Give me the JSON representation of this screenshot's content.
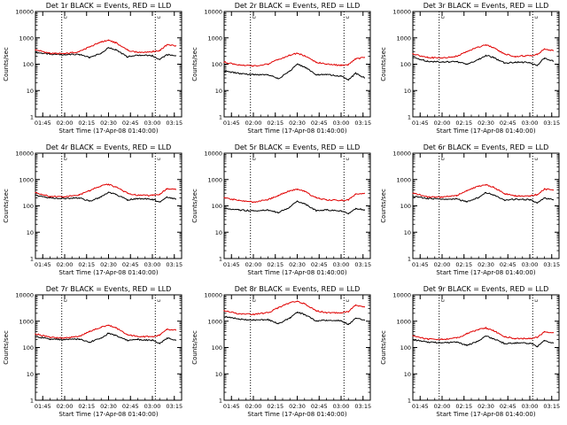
{
  "legend_marker": "␣",
  "colors": {
    "events": "#000000",
    "lld": "#e00000",
    "axis": "#000000",
    "background": "#ffffff"
  },
  "chart_data": [
    {
      "type": "line",
      "title": "Det 1r BLACK = Events, RED = LLD",
      "xlabel": "Start Time (17-Apr-08 01:40:00)",
      "ylabel": "Counts/sec",
      "x_ticks": [
        "01:45",
        "02:00",
        "02:15",
        "02:30",
        "02:45",
        "03:00",
        "03:15"
      ],
      "y_ticks": [
        "1",
        "10",
        "100",
        "1000",
        "10000"
      ],
      "yscale": "log",
      "ylim": [
        1,
        10000
      ],
      "grid": false,
      "x": [
        "01:40",
        "01:50",
        "02:00",
        "02:10",
        "02:17",
        "02:25",
        "02:30",
        "02:35",
        "02:43",
        "02:50",
        "03:00",
        "03:05",
        "03:10",
        "03:16"
      ],
      "vlines": [
        "01:58",
        "03:02"
      ],
      "series": [
        {
          "name": "Events",
          "values": [
            280,
            240,
            230,
            235,
            180,
            260,
            420,
            350,
            190,
            220,
            210,
            150,
            230,
            210
          ]
        },
        {
          "name": "LLD",
          "values": [
            350,
            260,
            250,
            300,
            450,
            700,
            800,
            650,
            340,
            280,
            300,
            330,
            550,
            500
          ]
        }
      ]
    },
    {
      "type": "line",
      "title": "Det 2r BLACK = Events, RED = LLD",
      "xlabel": "Start Time (17-Apr-08 01:40:00)",
      "ylabel": "Counts/sec",
      "x_ticks": [
        "01:45",
        "02:00",
        "02:15",
        "02:30",
        "02:45",
        "03:00",
        "03:15"
      ],
      "y_ticks": [
        "1",
        "10",
        "100",
        "1000",
        "10000"
      ],
      "yscale": "log",
      "ylim": [
        1,
        10000
      ],
      "grid": false,
      "x": [
        "01:40",
        "01:50",
        "02:00",
        "02:10",
        "02:17",
        "02:25",
        "02:30",
        "02:35",
        "02:43",
        "02:50",
        "03:00",
        "03:05",
        "03:10",
        "03:16"
      ],
      "vlines": [
        "01:58",
        "03:02"
      ],
      "series": [
        {
          "name": "Events",
          "values": [
            55,
            45,
            40,
            40,
            28,
            55,
            100,
            80,
            40,
            40,
            35,
            25,
            45,
            30
          ]
        },
        {
          "name": "LLD",
          "values": [
            120,
            95,
            85,
            100,
            150,
            220,
            260,
            210,
            120,
            100,
            90,
            95,
            160,
            180
          ]
        }
      ]
    },
    {
      "type": "line",
      "title": "Det 3r BLACK = Events, RED = LLD",
      "xlabel": "Start Time (17-Apr-08 01:40:00)",
      "ylabel": "Counts/sec",
      "x_ticks": [
        "01:45",
        "02:00",
        "02:15",
        "02:30",
        "02:45",
        "03:00",
        "03:15"
      ],
      "y_ticks": [
        "1",
        "10",
        "100",
        "1000",
        "10000"
      ],
      "yscale": "log",
      "ylim": [
        1,
        10000
      ],
      "grid": false,
      "x": [
        "01:40",
        "01:50",
        "02:00",
        "02:10",
        "02:17",
        "02:25",
        "02:30",
        "02:35",
        "02:43",
        "02:50",
        "03:00",
        "03:05",
        "03:10",
        "03:16"
      ],
      "vlines": [
        "01:58",
        "03:02"
      ],
      "series": [
        {
          "name": "Events",
          "values": [
            180,
            130,
            120,
            125,
            100,
            150,
            220,
            180,
            110,
            120,
            115,
            90,
            170,
            130
          ]
        },
        {
          "name": "LLD",
          "values": [
            250,
            180,
            170,
            200,
            300,
            450,
            550,
            420,
            240,
            200,
            210,
            230,
            380,
            330
          ]
        }
      ]
    },
    {
      "type": "line",
      "title": "Det 4r BLACK = Events, RED = LLD",
      "xlabel": "Start Time (17-Apr-08 01:40:00)",
      "ylabel": "Counts/sec",
      "x_ticks": [
        "01:45",
        "02:00",
        "02:15",
        "02:30",
        "02:45",
        "03:00",
        "03:15"
      ],
      "y_ticks": [
        "1",
        "10",
        "100",
        "1000",
        "10000"
      ],
      "yscale": "log",
      "ylim": [
        1,
        10000
      ],
      "grid": false,
      "x": [
        "01:40",
        "01:50",
        "02:00",
        "02:10",
        "02:17",
        "02:25",
        "02:30",
        "02:35",
        "02:43",
        "02:50",
        "03:00",
        "03:05",
        "03:10",
        "03:16"
      ],
      "vlines": [
        "01:58",
        "03:02"
      ],
      "series": [
        {
          "name": "Events",
          "values": [
            250,
            200,
            190,
            200,
            150,
            220,
            330,
            270,
            170,
            190,
            180,
            140,
            220,
            180
          ]
        },
        {
          "name": "LLD",
          "values": [
            320,
            230,
            220,
            260,
            380,
            580,
            650,
            520,
            300,
            250,
            250,
            280,
            450,
            420
          ]
        }
      ]
    },
    {
      "type": "line",
      "title": "Det 5r BLACK = Events, RED = LLD",
      "xlabel": "Start Time (17-Apr-08 01:40:00)",
      "ylabel": "Counts/sec",
      "x_ticks": [
        "01:45",
        "02:00",
        "02:15",
        "02:30",
        "02:45",
        "03:00",
        "03:15"
      ],
      "y_ticks": [
        "1",
        "10",
        "100",
        "1000",
        "10000"
      ],
      "yscale": "log",
      "ylim": [
        1,
        10000
      ],
      "grid": false,
      "x": [
        "01:40",
        "01:50",
        "02:00",
        "02:10",
        "02:17",
        "02:25",
        "02:30",
        "02:35",
        "02:43",
        "02:50",
        "03:00",
        "03:05",
        "03:10",
        "03:16"
      ],
      "vlines": [
        "01:58",
        "03:02"
      ],
      "series": [
        {
          "name": "Events",
          "values": [
            80,
            70,
            65,
            70,
            55,
            90,
            150,
            120,
            65,
            70,
            65,
            50,
            80,
            70
          ]
        },
        {
          "name": "LLD",
          "values": [
            200,
            160,
            140,
            170,
            250,
            380,
            430,
            350,
            200,
            170,
            160,
            170,
            280,
            300
          ]
        }
      ]
    },
    {
      "type": "line",
      "title": "Det 6r BLACK = Events, RED = LLD",
      "xlabel": "Start Time (17-Apr-08 01:40:00)",
      "ylabel": "Counts/sec",
      "x_ticks": [
        "01:45",
        "02:00",
        "02:15",
        "02:30",
        "02:45",
        "03:00",
        "03:15"
      ],
      "y_ticks": [
        "1",
        "10",
        "100",
        "1000",
        "10000"
      ],
      "yscale": "log",
      "ylim": [
        1,
        10000
      ],
      "grid": false,
      "x": [
        "01:40",
        "01:50",
        "02:00",
        "02:10",
        "02:17",
        "02:25",
        "02:30",
        "02:35",
        "02:43",
        "02:50",
        "03:00",
        "03:05",
        "03:10",
        "03:16"
      ],
      "vlines": [
        "01:58",
        "03:02"
      ],
      "series": [
        {
          "name": "Events",
          "values": [
            230,
            190,
            180,
            185,
            140,
            210,
            320,
            260,
            160,
            180,
            170,
            130,
            200,
            170
          ]
        },
        {
          "name": "LLD",
          "values": [
            300,
            220,
            210,
            250,
            370,
            560,
            640,
            510,
            290,
            240,
            240,
            270,
            430,
            400
          ]
        }
      ]
    },
    {
      "type": "line",
      "title": "Det 7r BLACK = Events, RED = LLD",
      "xlabel": "Start Time (17-Apr-08 01:40:00)",
      "ylabel": "Counts/sec",
      "x_ticks": [
        "01:45",
        "02:00",
        "02:15",
        "02:30",
        "02:45",
        "03:00",
        "03:15"
      ],
      "y_ticks": [
        "1",
        "10",
        "100",
        "1000",
        "10000"
      ],
      "yscale": "log",
      "ylim": [
        1,
        10000
      ],
      "grid": false,
      "x": [
        "01:40",
        "01:50",
        "02:00",
        "02:10",
        "02:17",
        "02:25",
        "02:30",
        "02:35",
        "02:43",
        "02:50",
        "03:00",
        "03:05",
        "03:10",
        "03:16"
      ],
      "vlines": [
        "01:58",
        "03:02"
      ],
      "series": [
        {
          "name": "Events",
          "values": [
            260,
            210,
            200,
            210,
            160,
            230,
            350,
            290,
            180,
            200,
            190,
            140,
            230,
            190
          ]
        },
        {
          "name": "LLD",
          "values": [
            330,
            240,
            230,
            270,
            400,
            600,
            700,
            560,
            310,
            260,
            260,
            290,
            480,
            460
          ]
        }
      ]
    },
    {
      "type": "line",
      "title": "Det 8r BLACK = Events, RED = LLD",
      "xlabel": "Start Time (17-Apr-08 01:40:00)",
      "ylabel": "Counts/sec",
      "x_ticks": [
        "01:45",
        "02:00",
        "02:15",
        "02:30",
        "02:45",
        "03:00",
        "03:15"
      ],
      "y_ticks": [
        "1",
        "10",
        "100",
        "1000",
        "10000"
      ],
      "yscale": "log",
      "ylim": [
        1,
        10000
      ],
      "grid": false,
      "x": [
        "01:40",
        "01:50",
        "02:00",
        "02:10",
        "02:17",
        "02:25",
        "02:30",
        "02:35",
        "02:43",
        "02:50",
        "03:00",
        "03:05",
        "03:10",
        "03:16"
      ],
      "vlines": [
        "01:58",
        "03:02"
      ],
      "series": [
        {
          "name": "Events",
          "values": [
            1500,
            1200,
            1100,
            1150,
            800,
            1300,
            2200,
            1800,
            1000,
            1100,
            1050,
            750,
            1300,
            1100
          ]
        },
        {
          "name": "LLD",
          "values": [
            2500,
            1900,
            1800,
            2100,
            3200,
            5000,
            5800,
            4600,
            2500,
            2100,
            2100,
            2300,
            4000,
            3500
          ]
        }
      ]
    },
    {
      "type": "line",
      "title": "Det 9r BLACK = Events, RED = LLD",
      "xlabel": "Start Time (17-Apr-08 01:40:00)",
      "ylabel": "Counts/sec",
      "x_ticks": [
        "01:45",
        "02:00",
        "02:15",
        "02:30",
        "02:45",
        "03:00",
        "03:15"
      ],
      "y_ticks": [
        "1",
        "10",
        "100",
        "1000",
        "10000"
      ],
      "yscale": "log",
      "ylim": [
        1,
        10000
      ],
      "grid": false,
      "x": [
        "01:40",
        "01:50",
        "02:00",
        "02:10",
        "02:17",
        "02:25",
        "02:30",
        "02:35",
        "02:43",
        "02:50",
        "03:00",
        "03:05",
        "03:10",
        "03:16"
      ],
      "vlines": [
        "01:58",
        "03:02"
      ],
      "series": [
        {
          "name": "Events",
          "values": [
            200,
            160,
            150,
            160,
            120,
            180,
            270,
            220,
            140,
            150,
            145,
            110,
            180,
            150
          ]
        },
        {
          "name": "LLD",
          "values": [
            280,
            210,
            200,
            230,
            330,
            480,
            550,
            440,
            260,
            220,
            220,
            240,
            390,
            370
          ]
        }
      ]
    }
  ]
}
